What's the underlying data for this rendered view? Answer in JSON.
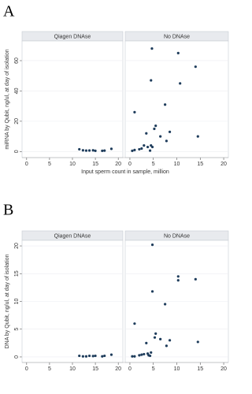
{
  "chart_data": [
    {
      "type": "scatter",
      "label": "A",
      "ylabel": "miRNA by Qubit, ng/ul, at day of isolation",
      "xlabel": "Input sperm count in sample, million",
      "xlim": [
        -1,
        21
      ],
      "xticks": [
        0,
        5,
        10,
        15,
        20
      ],
      "ylim": [
        -4,
        73
      ],
      "yticks": [
        0,
        20,
        40,
        60
      ],
      "grid": true,
      "series": [
        {
          "name": "Qiagen DNAse",
          "color": "#1f3d5c",
          "x": [
            11.5,
            12.3,
            13,
            13.7,
            14.5,
            15,
            16.5,
            17,
            18.5
          ],
          "values": [
            1.5,
            0.8,
            0.6,
            0.7,
            0.8,
            0.5,
            0.5,
            0.6,
            1.8
          ]
        },
        {
          "name": "No DNAse",
          "color": "#1f3d5c",
          "x": [
            4.7,
            10.3,
            14,
            4.5,
            10.7,
            7.5,
            1,
            5.5,
            5.2,
            8.5,
            3.5,
            6.5,
            14.5,
            7.8,
            3,
            4.5,
            3.8,
            4.8,
            2.5,
            1,
            0.5,
            4.3,
            2
          ],
          "values": [
            68,
            65,
            56,
            47,
            45,
            31,
            26,
            17,
            15,
            13,
            12,
            10,
            10,
            7,
            4,
            4,
            3,
            3,
            2,
            1,
            0.5,
            0.6,
            1.5
          ]
        }
      ]
    },
    {
      "type": "scatter",
      "label": "B",
      "ylabel": "DNA by Qubit, ng/ul, at day of isolation",
      "xlim": [
        -1,
        21
      ],
      "xticks": [
        0,
        5,
        10,
        15,
        20
      ],
      "ylim": [
        -1,
        21
      ],
      "yticks": [
        0,
        5,
        10,
        15,
        20
      ],
      "grid": true,
      "series": [
        {
          "name": "Qiagen DNAse",
          "color": "#1f3d5c",
          "x": [
            11.5,
            12.3,
            13,
            13.7,
            14.5,
            15,
            16.5,
            17,
            18.5
          ],
          "values": [
            0.2,
            0.1,
            0.1,
            0.2,
            0.15,
            0.2,
            0.1,
            0.2,
            0.4
          ]
        },
        {
          "name": "No DNAse",
          "color": "#1f3d5c",
          "x": [
            4.8,
            10.3,
            10.3,
            14,
            4.8,
            7.5,
            1,
            5.5,
            5.3,
            8.5,
            6.5,
            14.5,
            3.5,
            7.8,
            3,
            4.5,
            2.5,
            4,
            1,
            0.5,
            4.3,
            2,
            3.8
          ],
          "values": [
            20.2,
            14.5,
            13.8,
            14,
            11.8,
            9.5,
            6,
            4.2,
            3.5,
            3,
            3.2,
            2.7,
            2.5,
            2,
            0.5,
            0.8,
            0.4,
            0.3,
            0.1,
            0.1,
            0.2,
            0.3,
            0.6
          ]
        }
      ]
    }
  ]
}
